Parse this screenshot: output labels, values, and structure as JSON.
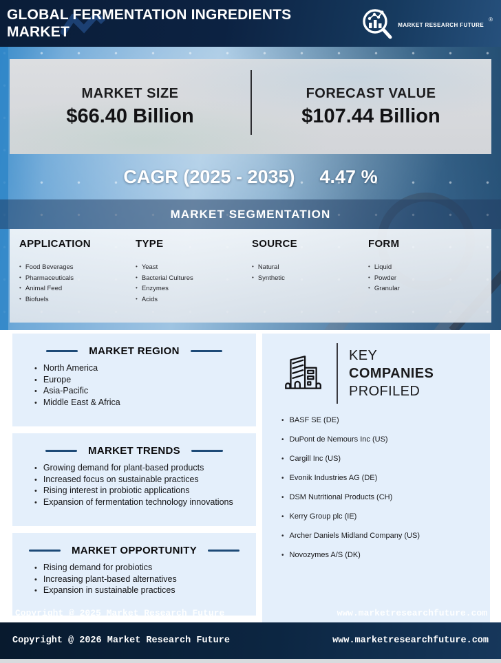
{
  "header": {
    "title_line1": "GLOBAL FERMENTATION INGREDIENTS",
    "title_line2": "MARKET",
    "logo_text": "MARKET RESEARCH FUTURE",
    "registered_mark": "®"
  },
  "stats": {
    "market_size_label": "MARKET SIZE",
    "market_size_value": "$66.40 Billion",
    "forecast_label": "FORECAST VALUE",
    "forecast_value": "$107.44 Billion"
  },
  "cagr": {
    "label": "CAGR (2025 - 2035)",
    "value": "4.47 %"
  },
  "segmentation": {
    "title": "MARKET SEGMENTATION",
    "columns": [
      {
        "heading": "APPLICATION",
        "items": [
          "Food Beverages",
          "Pharmaceuticals",
          "Animal Feed",
          "Biofuels"
        ]
      },
      {
        "heading": "TYPE",
        "items": [
          "Yeast",
          "Bacterial Cultures",
          "Enzymes",
          "Acids"
        ]
      },
      {
        "heading": "SOURCE",
        "items": [
          "Natural",
          "Synthetic"
        ]
      },
      {
        "heading": "FORM",
        "items": [
          "Liquid",
          "Powder",
          "Granular"
        ]
      }
    ]
  },
  "region": {
    "title": "MARKET REGION",
    "items": [
      "North America",
      "Europe",
      "Asia-Pacific",
      "Middle East & Africa"
    ]
  },
  "trends": {
    "title": "MARKET TRENDS",
    "items": [
      "Growing demand for plant-based products",
      "Increased focus on sustainable practices",
      "Rising interest in probiotic applications",
      "Expansion of fermentation technology innovations"
    ]
  },
  "opportunity": {
    "title": "MARKET OPPORTUNITY",
    "items": [
      "Rising demand for probiotics",
      "Increasing plant-based alternatives",
      "Expansion in sustainable practices"
    ]
  },
  "companies": {
    "title_line1": "KEY",
    "title_line2": "COMPANIES",
    "title_line3": "PROFILED",
    "items": [
      "BASF SE (DE)",
      "DuPont de Nemours Inc (US)",
      "Cargill Inc (US)",
      "Evonik Industries AG (DE)",
      "DSM Nutritional Products (CH)",
      "Kerry Group plc (IE)",
      "Archer Daniels Midland Company (US)",
      "Novozymes A/S (DK)"
    ]
  },
  "watermark": {
    "copyright": "Copyright @ 2025 Market Research Future",
    "website": "www.marketresearchfuture.com"
  },
  "footer": {
    "copyright": "Copyright @ 2026 Market Research Future",
    "website": "www.marketresearchfuture.com"
  },
  "colors": {
    "header_navy": "#0c2242",
    "footer_navy": "#0c2642",
    "accent_line_navy": "#1d4a77",
    "panel_light_blue": "#e4effb",
    "stats_panel_gray": "#d6d8db",
    "seg_band_blue": "#3f6690",
    "hero_blue": "#6fa9d8",
    "text_dark": "#121214",
    "text_white": "#ffffff"
  }
}
